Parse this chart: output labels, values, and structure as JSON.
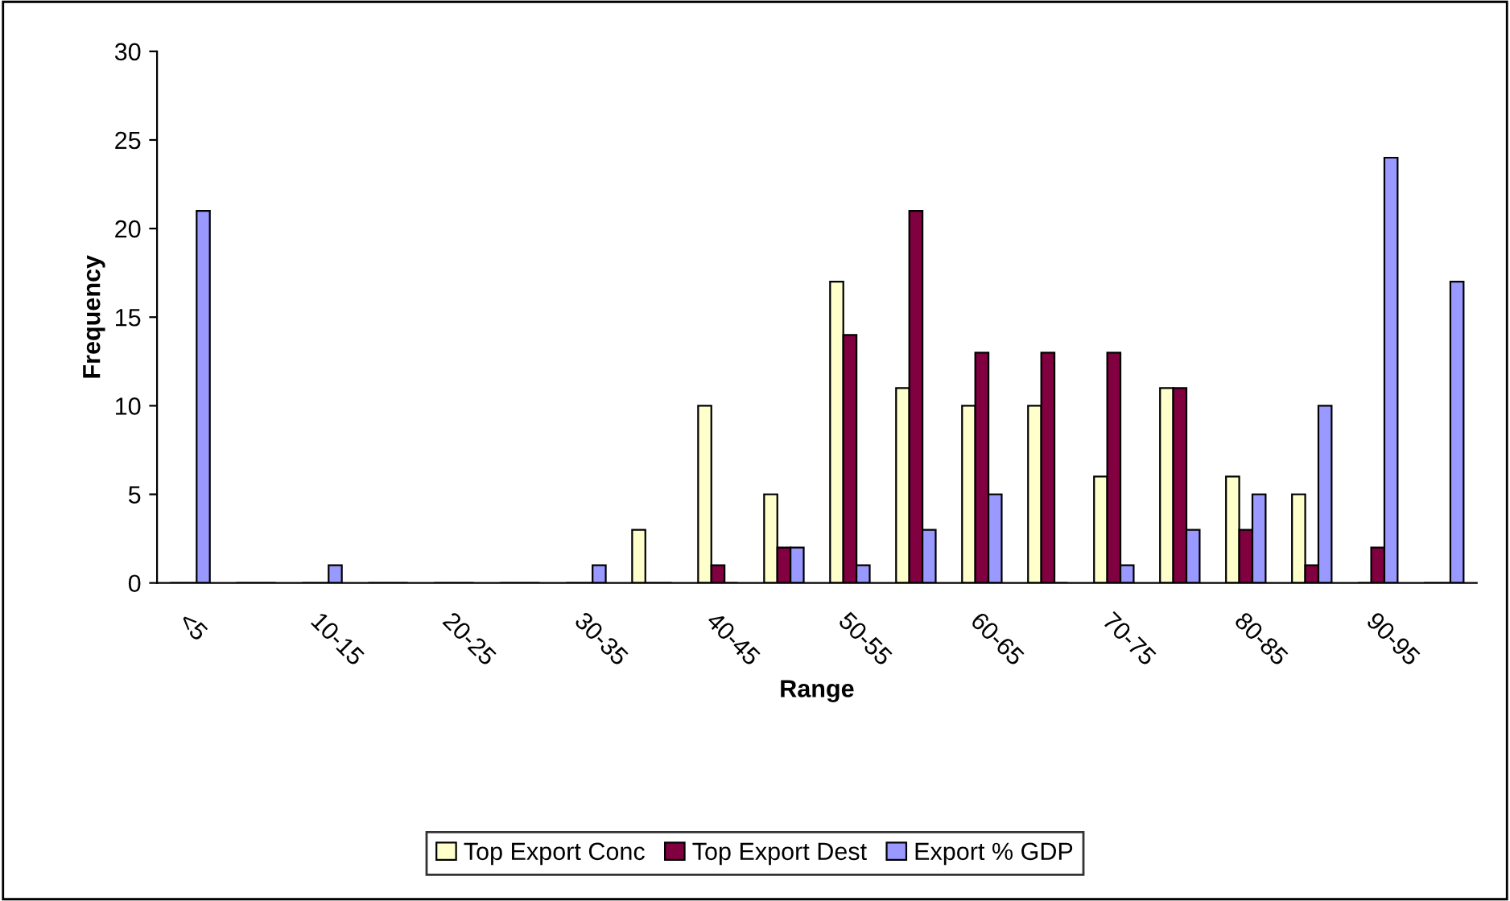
{
  "chart_data": {
    "type": "bar",
    "xlabel": "Range",
    "ylabel": "Frequency",
    "categories": [
      "<5",
      null,
      "10-15",
      null,
      "20-25",
      null,
      "30-35",
      null,
      "40-45",
      null,
      "50-55",
      null,
      "60-65",
      null,
      "70-75",
      null,
      "80-85",
      null,
      "90-95",
      null
    ],
    "series": [
      {
        "name": "Top Export Conc",
        "color": "#ffffcc",
        "values": [
          0,
          0,
          0,
          0,
          0,
          0,
          0,
          3,
          10,
          5,
          17,
          11,
          10,
          10,
          6,
          11,
          6,
          5,
          0,
          0
        ]
      },
      {
        "name": "Top Export Dest",
        "color": "#800040",
        "values": [
          0,
          0,
          0,
          0,
          0,
          0,
          0,
          0,
          1,
          2,
          14,
          21,
          13,
          13,
          13,
          11,
          3,
          1,
          2,
          0
        ]
      },
      {
        "name": "Export % GDP",
        "color": "#9999ff",
        "values": [
          21,
          0,
          1,
          0,
          0,
          0,
          1,
          0,
          0,
          2,
          1,
          3,
          5,
          0,
          1,
          3,
          5,
          10,
          24,
          17
        ]
      }
    ],
    "ylim": [
      0,
      30
    ],
    "yticks": [
      0,
      5,
      10,
      15,
      20,
      25,
      30
    ],
    "grid": false,
    "legend": "bottom"
  }
}
